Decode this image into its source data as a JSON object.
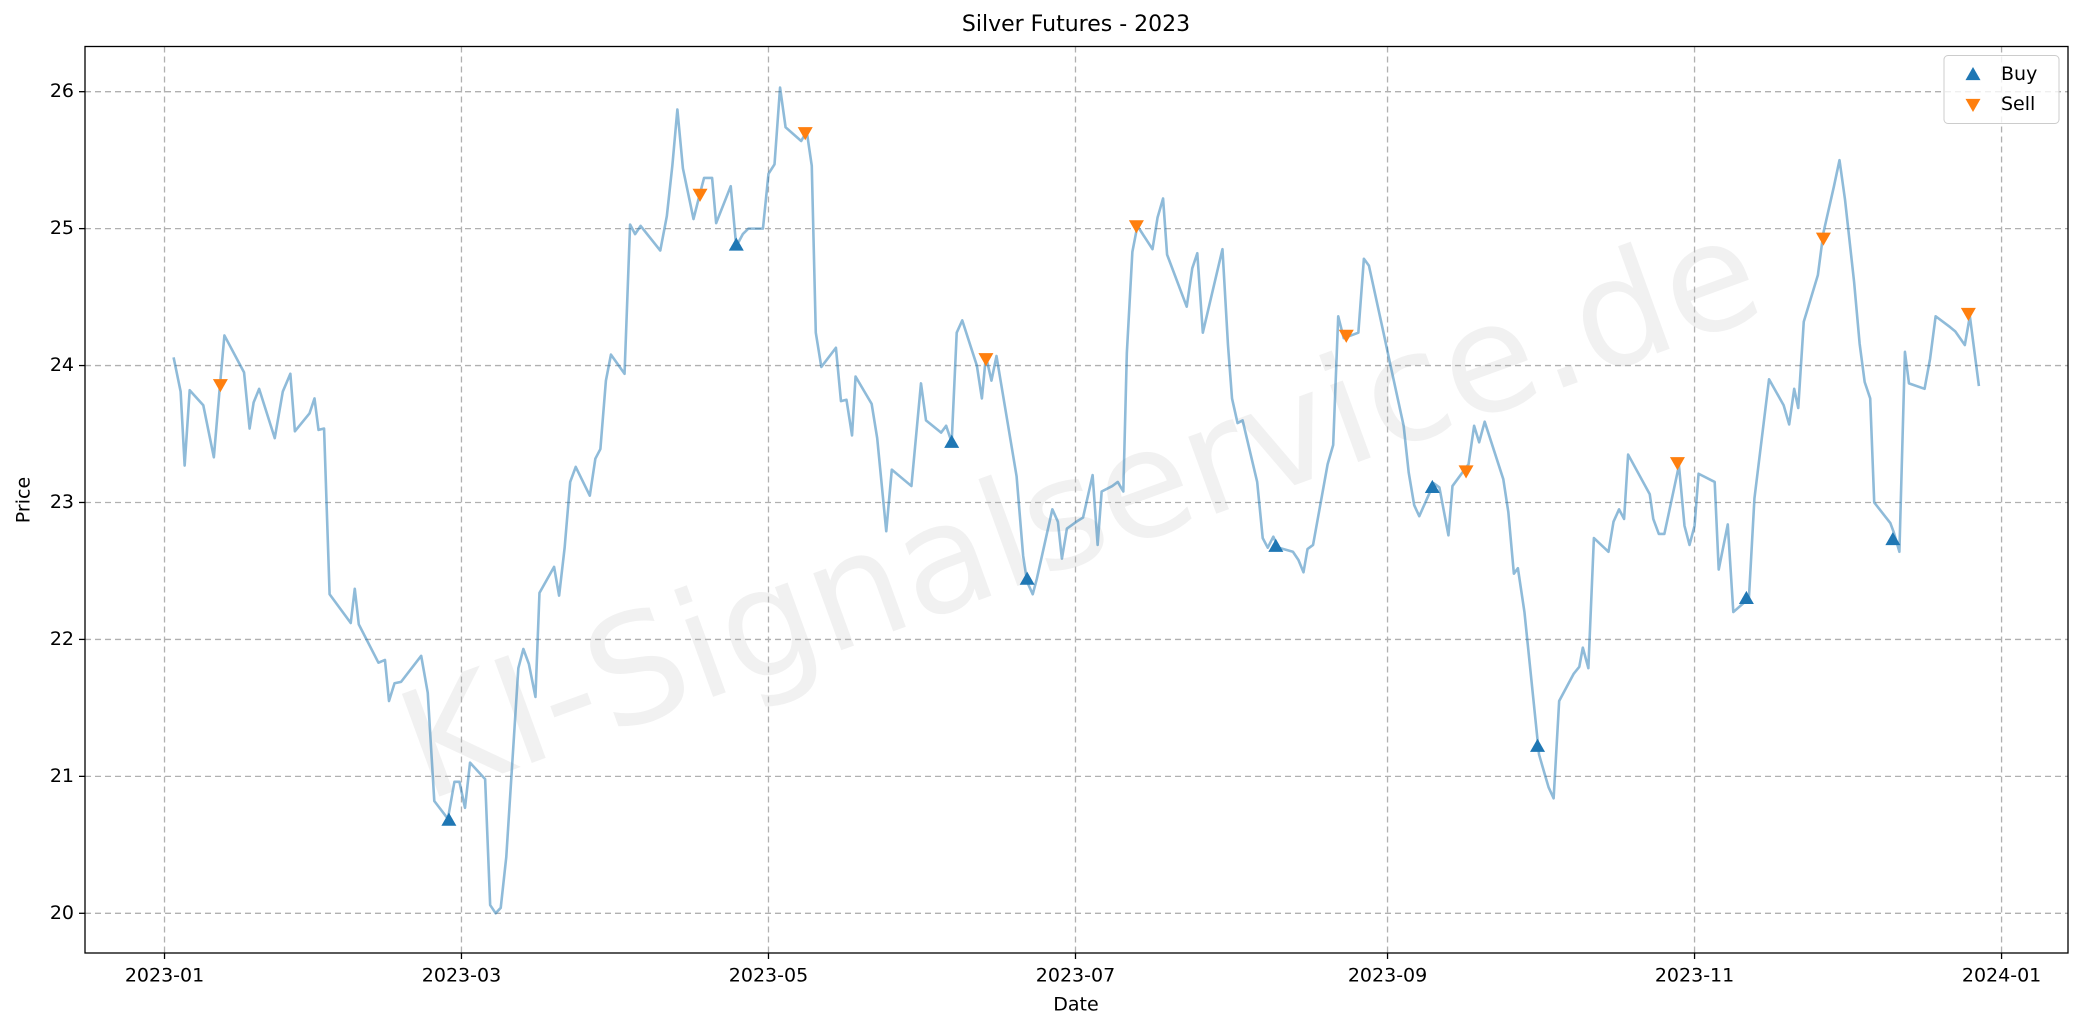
{
  "chart_data": {
    "type": "line",
    "title": "Silver Futures - 2023",
    "x_label": "Date",
    "y_label": "Price",
    "watermark": "KI-Signalservice.de",
    "xlim": [
      -15.8,
      378.2
    ],
    "ylim": [
      19.71,
      26.33
    ],
    "xticks": [
      {
        "value": 0,
        "label": "2023-01"
      },
      {
        "value": 59,
        "label": "2023-03"
      },
      {
        "value": 120,
        "label": "2023-05"
      },
      {
        "value": 181,
        "label": "2023-07"
      },
      {
        "value": 243,
        "label": "2023-09"
      },
      {
        "value": 304,
        "label": "2023-11"
      },
      {
        "value": 365,
        "label": "2024-01"
      }
    ],
    "yticks": [
      20,
      21,
      22,
      23,
      24,
      25,
      26
    ],
    "grid": true,
    "legend": "upper right",
    "series": [
      {
        "type": "line",
        "color": "#1f77b4",
        "alpha": 0.5,
        "x": [
          1.8,
          3.2,
          4,
          5,
          7.7,
          9.8,
          11,
          11.9,
          15.8,
          16.9,
          17.7,
          18.8,
          21.9,
          23.5,
          25,
          25.9,
          28.8,
          29.8,
          30.6,
          31.7,
          32.8,
          37,
          37.8,
          38.6,
          42.5,
          43.8,
          44.6,
          45.7,
          47,
          51,
          52.3,
          53.6,
          56.3,
          57.6,
          58.6,
          59.7,
          60.7,
          63.7,
          64.7,
          65.8,
          66.8,
          67.9,
          70.3,
          71.3,
          72.4,
          73.7,
          74.5,
          77.4,
          78.4,
          79.5,
          80.6,
          81.7,
          84.5,
          85.6,
          86.6,
          87.7,
          88.7,
          91.4,
          92.5,
          93.5,
          94.6,
          98.5,
          99.8,
          100.9,
          101.9,
          103,
          105.1,
          106.2,
          107.2,
          108.8,
          109.6,
          112.5,
          113.6,
          114.9,
          116,
          118.9,
          120,
          121.2,
          122.3,
          123.4,
          126.5,
          127.6,
          128.6,
          129.4,
          130.5,
          133.4,
          134.4,
          135.5,
          136.6,
          137.3,
          140.5,
          141.6,
          143.4,
          144.5,
          148.4,
          150.3,
          151.3,
          154.3,
          155.3,
          156.4,
          157.4,
          158.5,
          161.4,
          162.4,
          163.2,
          164.3,
          165.3,
          169.3,
          170.6,
          171.4,
          172.5,
          173.3,
          176.4,
          177.5,
          178.3,
          179.3,
          181.2,
          182.5,
          184.4,
          185.4,
          186.2,
          188.3,
          189.4,
          190.5,
          191.2,
          192.3,
          193.3,
          196.3,
          197.3,
          198.4,
          199.2,
          203.1,
          204.2,
          205.2,
          206.3,
          210.2,
          211.3,
          212.1,
          213.2,
          214.2,
          217.1,
          218.2,
          219.2,
          220.3,
          221.3,
          224.2,
          225.3,
          226.3,
          227.1,
          228.2,
          231.1,
          232.2,
          233.2,
          234.3,
          237.2,
          238.3,
          239.3,
          242.2,
          243.3,
          246.2,
          247.2,
          248.3,
          249.3,
          252.2,
          253.3,
          255.1,
          255.9,
          259.1,
          260.2,
          261.2,
          262.3,
          266,
          267,
          268.1,
          268.9,
          270.2,
          273.1,
          274.2,
          275,
          276,
          277.1,
          280,
          281.1,
          281.8,
          282.9,
          284,
          286.9,
          287.9,
          289,
          290,
          290.8,
          295.1,
          295.8,
          296.9,
          298,
          300.9,
          302,
          303,
          304,
          304.8,
          308,
          308.8,
          310.6,
          311.7,
          314.8,
          315.9,
          318.8,
          321.7,
          322.8,
          323.8,
          324.6,
          325.7,
          328.5,
          329.6,
          331.7,
          332.8,
          333.9,
          335.7,
          336.8,
          337.8,
          338.9,
          339.7,
          342.9,
          343.6,
          344.7,
          345.8,
          346.6,
          349.7,
          350.8,
          351.9,
          354.8,
          355.8,
          357.7,
          358.7,
          360.5
        ],
        "values": [
          24.06,
          23.81,
          23.27,
          23.82,
          23.71,
          23.33,
          23.85,
          24.22,
          23.95,
          23.54,
          23.73,
          23.83,
          23.47,
          23.81,
          23.94,
          23.52,
          23.65,
          23.76,
          23.53,
          23.54,
          22.33,
          22.12,
          22.37,
          22.11,
          21.83,
          21.85,
          21.55,
          21.68,
          21.69,
          21.88,
          21.61,
          20.82,
          20.69,
          20.96,
          20.96,
          20.77,
          21.1,
          20.98,
          20.06,
          20.0,
          20.04,
          20.41,
          21.79,
          21.93,
          21.82,
          21.58,
          22.34,
          22.53,
          22.32,
          22.67,
          23.15,
          23.26,
          23.05,
          23.32,
          23.39,
          23.89,
          24.08,
          23.94,
          25.03,
          24.96,
          25.02,
          24.84,
          25.09,
          25.46,
          25.87,
          25.44,
          25.07,
          25.23,
          25.37,
          25.37,
          25.04,
          25.31,
          24.87,
          24.96,
          25.0,
          25.0,
          25.4,
          25.47,
          26.03,
          25.74,
          25.64,
          25.71,
          25.46,
          24.24,
          23.99,
          24.13,
          23.74,
          23.75,
          23.49,
          23.92,
          23.72,
          23.47,
          22.79,
          23.24,
          23.12,
          23.87,
          23.6,
          23.51,
          23.56,
          23.44,
          24.24,
          24.33,
          24.0,
          23.76,
          24.07,
          23.89,
          24.07,
          23.19,
          22.61,
          22.42,
          22.33,
          22.44,
          22.95,
          22.86,
          22.59,
          22.81,
          22.86,
          22.89,
          23.2,
          22.69,
          23.08,
          23.12,
          23.15,
          23.08,
          24.09,
          24.83,
          25.02,
          24.85,
          25.08,
          25.22,
          24.81,
          24.43,
          24.71,
          24.82,
          24.24,
          24.85,
          24.15,
          23.76,
          23.58,
          23.6,
          23.15,
          22.74,
          22.67,
          22.75,
          22.67,
          22.64,
          22.58,
          22.49,
          22.66,
          22.69,
          23.28,
          23.42,
          24.36,
          24.2,
          24.24,
          24.78,
          24.73,
          24.24,
          24.05,
          23.56,
          23.22,
          22.98,
          22.9,
          23.14,
          23.11,
          22.76,
          23.12,
          23.28,
          23.56,
          23.44,
          23.59,
          23.17,
          22.93,
          22.48,
          22.52,
          22.2,
          21.16,
          21.02,
          20.92,
          20.84,
          21.55,
          21.75,
          21.8,
          21.94,
          21.79,
          22.74,
          22.64,
          22.86,
          22.95,
          22.88,
          23.35,
          23.06,
          22.88,
          22.77,
          22.77,
          23.27,
          22.83,
          22.69,
          22.83,
          23.21,
          23.15,
          22.51,
          22.84,
          22.2,
          22.3,
          23.03,
          23.9,
          23.71,
          23.57,
          23.83,
          23.69,
          24.32,
          24.66,
          24.97,
          25.31,
          25.5,
          25.21,
          24.61,
          24.16,
          23.88,
          23.76,
          23.0,
          22.85,
          22.78,
          22.64,
          24.1,
          23.87,
          23.83,
          24.05,
          24.36,
          24.28,
          24.25,
          24.15,
          24.36,
          23.85
        ]
      },
      {
        "type": "scatter",
        "name": "Buy",
        "marker": "up",
        "color": "#1f77b4",
        "x": [
          56.5,
          113.6,
          156.4,
          171.4,
          220.8,
          251.9,
          272.8,
          314.3,
          343.4
        ],
        "values": [
          20.68,
          24.88,
          23.44,
          22.44,
          22.68,
          23.11,
          21.22,
          22.3,
          22.73
        ]
      },
      {
        "type": "scatter",
        "name": "Sell",
        "marker": "down",
        "color": "#ff7f0e",
        "x": [
          11.1,
          106.4,
          127.3,
          163.2,
          193.1,
          234.8,
          258.6,
          300.6,
          329.6,
          358.4
        ],
        "values": [
          23.86,
          25.25,
          25.7,
          24.05,
          25.02,
          24.22,
          23.23,
          23.29,
          24.93,
          24.38
        ]
      }
    ]
  }
}
